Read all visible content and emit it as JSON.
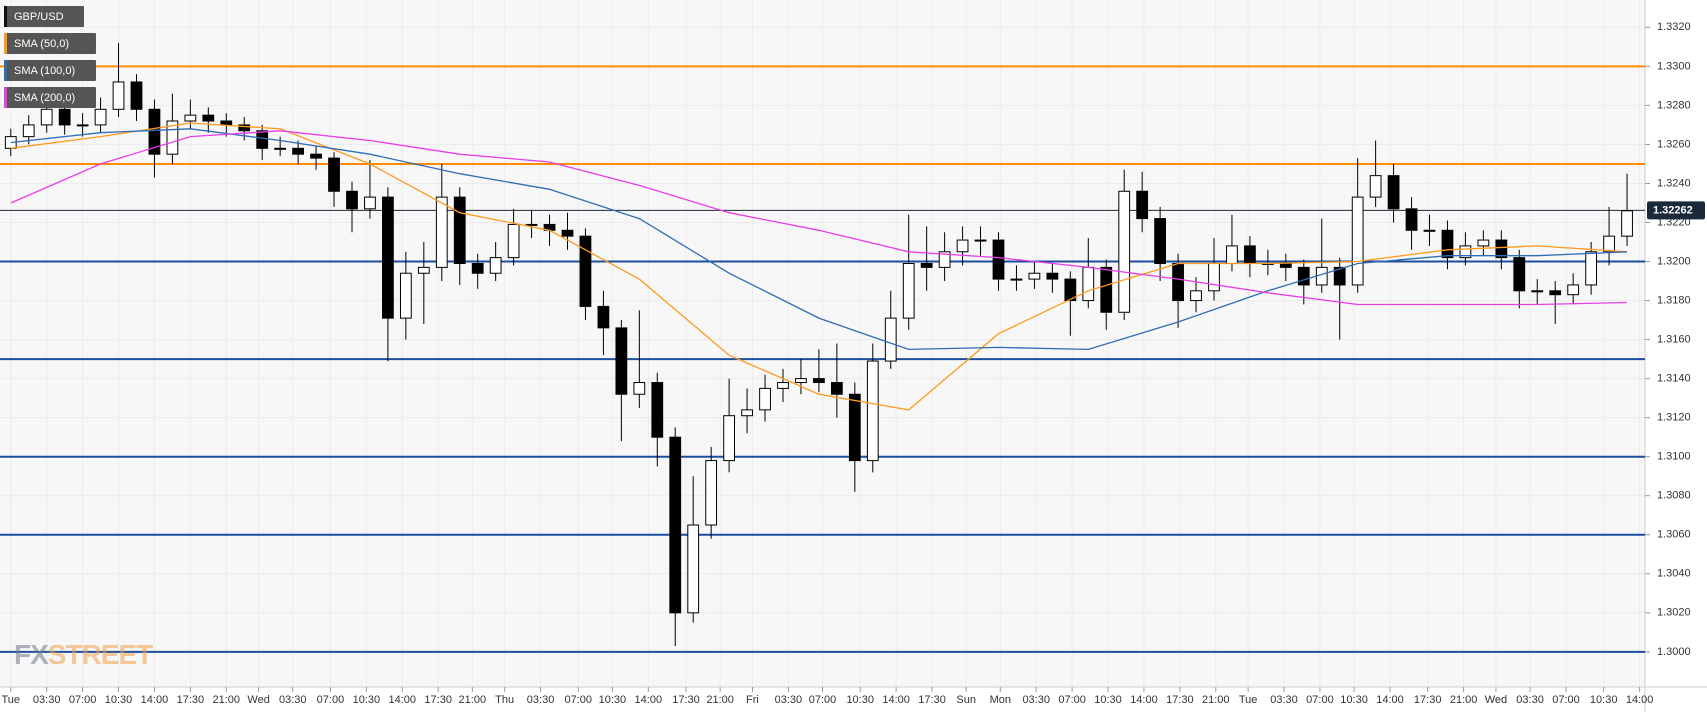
{
  "chart_data": {
    "type": "candlestick",
    "series": [
      {
        "name": "GBP/USD",
        "color": "#000000",
        "ohlc": [
          [
            1.3258,
            1.3268,
            1.3254,
            1.3264
          ],
          [
            1.3264,
            1.3275,
            1.326,
            1.327
          ],
          [
            1.327,
            1.3283,
            1.3266,
            1.3278
          ],
          [
            1.3278,
            1.3281,
            1.3265,
            1.327
          ],
          [
            1.327,
            1.3276,
            1.3264,
            1.327
          ],
          [
            1.327,
            1.3284,
            1.3266,
            1.3278
          ],
          [
            1.3278,
            1.3312,
            1.3274,
            1.3292
          ],
          [
            1.3292,
            1.3296,
            1.3272,
            1.3278
          ],
          [
            1.3278,
            1.3283,
            1.3243,
            1.3255
          ],
          [
            1.3255,
            1.3286,
            1.325,
            1.3272
          ],
          [
            1.3272,
            1.3283,
            1.3268,
            1.3275
          ],
          [
            1.3275,
            1.3279,
            1.3266,
            1.3272
          ],
          [
            1.3272,
            1.3276,
            1.3264,
            1.327
          ],
          [
            1.327,
            1.3274,
            1.3262,
            1.3267
          ],
          [
            1.3267,
            1.327,
            1.3252,
            1.3258
          ],
          [
            1.3258,
            1.3264,
            1.3254,
            1.3258
          ],
          [
            1.3258,
            1.3262,
            1.325,
            1.3255
          ],
          [
            1.3255,
            1.3259,
            1.3247,
            1.3253
          ],
          [
            1.3253,
            1.3256,
            1.3228,
            1.3236
          ],
          [
            1.3236,
            1.3241,
            1.3215,
            1.3227
          ],
          [
            1.3227,
            1.3252,
            1.3222,
            1.3233
          ],
          [
            1.3233,
            1.3238,
            1.3149,
            1.3171
          ],
          [
            1.3171,
            1.3205,
            1.316,
            1.3194
          ],
          [
            1.3194,
            1.321,
            1.3168,
            1.3197
          ],
          [
            1.3197,
            1.325,
            1.319,
            1.3233
          ],
          [
            1.3233,
            1.3238,
            1.3188,
            1.3199
          ],
          [
            1.3199,
            1.3204,
            1.3186,
            1.3194
          ],
          [
            1.3194,
            1.321,
            1.319,
            1.3202
          ],
          [
            1.3202,
            1.3227,
            1.3198,
            1.3219
          ],
          [
            1.3219,
            1.3226,
            1.3212,
            1.3219
          ],
          [
            1.3219,
            1.3224,
            1.3208,
            1.3216
          ],
          [
            1.3216,
            1.3225,
            1.3206,
            1.3213
          ],
          [
            1.3213,
            1.3217,
            1.317,
            1.3177
          ],
          [
            1.3177,
            1.3185,
            1.3152,
            1.3166
          ],
          [
            1.3166,
            1.317,
            1.3108,
            1.3132
          ],
          [
            1.3132,
            1.3175,
            1.3125,
            1.3138
          ],
          [
            1.3138,
            1.3143,
            1.3095,
            1.311
          ],
          [
            1.311,
            1.3115,
            1.3003,
            1.302
          ],
          [
            1.302,
            1.309,
            1.3015,
            1.3065
          ],
          [
            1.3065,
            1.3105,
            1.3058,
            1.3098
          ],
          [
            1.3098,
            1.314,
            1.3092,
            1.3121
          ],
          [
            1.3121,
            1.3135,
            1.3112,
            1.3124
          ],
          [
            1.3124,
            1.3142,
            1.3118,
            1.3135
          ],
          [
            1.3135,
            1.3145,
            1.3128,
            1.3138
          ],
          [
            1.3138,
            1.315,
            1.3132,
            1.314
          ],
          [
            1.314,
            1.3155,
            1.3133,
            1.3138
          ],
          [
            1.3138,
            1.3158,
            1.312,
            1.3132
          ],
          [
            1.3132,
            1.3138,
            1.3082,
            1.3098
          ],
          [
            1.3098,
            1.3158,
            1.3092,
            1.3149
          ],
          [
            1.3149,
            1.3185,
            1.3145,
            1.3171
          ],
          [
            1.3171,
            1.3224,
            1.3165,
            1.3199
          ],
          [
            1.3199,
            1.3218,
            1.3185,
            1.3197
          ],
          [
            1.3197,
            1.3215,
            1.319,
            1.3205
          ],
          [
            1.3205,
            1.3218,
            1.3198,
            1.3211
          ],
          [
            1.3211,
            1.3218,
            1.3203,
            1.3211
          ],
          [
            1.3211,
            1.3215,
            1.3185,
            1.3191
          ],
          [
            1.3191,
            1.3198,
            1.3185,
            1.3191
          ],
          [
            1.3191,
            1.32,
            1.3186,
            1.3194
          ],
          [
            1.3194,
            1.3199,
            1.3184,
            1.3191
          ],
          [
            1.3191,
            1.3195,
            1.3162,
            1.318
          ],
          [
            1.318,
            1.3212,
            1.3176,
            1.3197
          ],
          [
            1.3197,
            1.3201,
            1.3165,
            1.3174
          ],
          [
            1.3174,
            1.3247,
            1.317,
            1.3236
          ],
          [
            1.3236,
            1.3246,
            1.3215,
            1.3222
          ],
          [
            1.3222,
            1.3228,
            1.319,
            1.3199
          ],
          [
            1.3199,
            1.3204,
            1.3166,
            1.318
          ],
          [
            1.318,
            1.3192,
            1.3174,
            1.3185
          ],
          [
            1.3185,
            1.3212,
            1.318,
            1.3199
          ],
          [
            1.3199,
            1.3224,
            1.3195,
            1.3208
          ],
          [
            1.3208,
            1.3213,
            1.3192,
            1.3199
          ],
          [
            1.3199,
            1.3206,
            1.3193,
            1.3199
          ],
          [
            1.3199,
            1.3204,
            1.319,
            1.3197
          ],
          [
            1.3197,
            1.3201,
            1.3178,
            1.3188
          ],
          [
            1.3188,
            1.3222,
            1.3184,
            1.3197
          ],
          [
            1.3197,
            1.3202,
            1.316,
            1.3188
          ],
          [
            1.3188,
            1.3253,
            1.3184,
            1.3233
          ],
          [
            1.3233,
            1.3262,
            1.3228,
            1.3244
          ],
          [
            1.3244,
            1.325,
            1.322,
            1.3227
          ],
          [
            1.3227,
            1.3233,
            1.3206,
            1.3216
          ],
          [
            1.3216,
            1.3224,
            1.3208,
            1.3216
          ],
          [
            1.3216,
            1.3221,
            1.3196,
            1.3202
          ],
          [
            1.3202,
            1.3215,
            1.3198,
            1.3208
          ],
          [
            1.3208,
            1.3216,
            1.3203,
            1.3211
          ],
          [
            1.3211,
            1.3216,
            1.3196,
            1.3202
          ],
          [
            1.3202,
            1.3206,
            1.3176,
            1.3185
          ],
          [
            1.3185,
            1.3191,
            1.3178,
            1.3185
          ],
          [
            1.3185,
            1.319,
            1.3168,
            1.3183
          ],
          [
            1.3183,
            1.3194,
            1.3178,
            1.3188
          ],
          [
            1.3188,
            1.321,
            1.3183,
            1.3205
          ],
          [
            1.3205,
            1.3228,
            1.3198,
            1.3213
          ],
          [
            1.3213,
            1.3245,
            1.3208,
            1.3226
          ]
        ]
      },
      {
        "name": "SMA (50,0)",
        "color": "#ff9a1f",
        "x": [
          0,
          5,
          10,
          15,
          20,
          25,
          30,
          35,
          40,
          45,
          50,
          55,
          60,
          65,
          70,
          75,
          80,
          85,
          90
        ],
        "values": [
          1.3258,
          1.3264,
          1.3271,
          1.3268,
          1.325,
          1.3225,
          1.3216,
          1.3191,
          1.3152,
          1.3132,
          1.3124,
          1.3163,
          1.3185,
          1.3199,
          1.3199,
          1.32,
          1.3206,
          1.3208,
          1.3205
        ]
      },
      {
        "name": "SMA (100,0)",
        "color": "#2f6db5",
        "x": [
          0,
          5,
          10,
          15,
          20,
          25,
          30,
          35,
          40,
          45,
          50,
          55,
          60,
          65,
          70,
          75,
          80,
          85,
          90
        ],
        "values": [
          1.3261,
          1.3266,
          1.3268,
          1.3262,
          1.3255,
          1.3245,
          1.3237,
          1.3222,
          1.3194,
          1.3171,
          1.3155,
          1.3156,
          1.3155,
          1.3169,
          1.3185,
          1.3199,
          1.3203,
          1.3203,
          1.3205
        ]
      },
      {
        "name": "SMA (200,0)",
        "color": "#e83ee8",
        "x": [
          0,
          5,
          10,
          15,
          20,
          25,
          30,
          35,
          40,
          45,
          50,
          55,
          60,
          65,
          70,
          75,
          80,
          85,
          90
        ],
        "values": [
          1.323,
          1.325,
          1.3264,
          1.3267,
          1.3262,
          1.3255,
          1.3251,
          1.3239,
          1.3225,
          1.3216,
          1.3205,
          1.3202,
          1.3197,
          1.3191,
          1.3184,
          1.3178,
          1.3178,
          1.3178,
          1.3179
        ]
      }
    ],
    "levels": [
      {
        "value": 1.33,
        "color": "#ff8c00"
      },
      {
        "value": 1.325,
        "color": "#ff8c00"
      },
      {
        "value": 1.32,
        "color": "#1c4d9e"
      },
      {
        "value": 1.315,
        "color": "#1c4d9e"
      },
      {
        "value": 1.31,
        "color": "#1c4d9e"
      },
      {
        "value": 1.306,
        "color": "#1c4d9e"
      },
      {
        "value": 1.3,
        "color": "#1c4d9e"
      }
    ],
    "last_price": {
      "value": 1.32262,
      "label": "1.32262"
    },
    "watermark": {
      "prefix": "FX",
      "suffix": "STREET"
    },
    "xlim": [
      -0.6,
      91
    ],
    "ylim": [
      1.2982,
      1.3334
    ],
    "yticks": [
      {
        "value": 1.3,
        "label": "1.3000"
      },
      {
        "value": 1.302,
        "label": "1.3020"
      },
      {
        "value": 1.304,
        "label": "1.3040"
      },
      {
        "value": 1.306,
        "label": "1.3060"
      },
      {
        "value": 1.308,
        "label": "1.3080"
      },
      {
        "value": 1.31,
        "label": "1.3100"
      },
      {
        "value": 1.312,
        "label": "1.3120"
      },
      {
        "value": 1.314,
        "label": "1.3140"
      },
      {
        "value": 1.316,
        "label": "1.3160"
      },
      {
        "value": 1.318,
        "label": "1.3180"
      },
      {
        "value": 1.32,
        "label": "1.3200"
      },
      {
        "value": 1.322,
        "label": "1.3220"
      },
      {
        "value": 1.324,
        "label": "1.3240"
      },
      {
        "value": 1.326,
        "label": "1.3260"
      },
      {
        "value": 1.328,
        "label": "1.3280"
      },
      {
        "value": 1.33,
        "label": "1.3300"
      },
      {
        "value": 1.332,
        "label": "1.3320"
      }
    ],
    "xticks": [
      {
        "value": 0,
        "label": "Tue"
      },
      {
        "value": 2.0,
        "label": "03:30"
      },
      {
        "value": 4.0,
        "label": "07:00"
      },
      {
        "value": 6.0,
        "label": "10:30"
      },
      {
        "value": 8.0,
        "label": "14:00"
      },
      {
        "value": 10.0,
        "label": "17:30"
      },
      {
        "value": 12.0,
        "label": "21:00"
      },
      {
        "value": 13.8,
        "label": "Wed"
      },
      {
        "value": 15.7,
        "label": "03:30"
      },
      {
        "value": 17.8,
        "label": "07:00"
      },
      {
        "value": 19.8,
        "label": "10:30"
      },
      {
        "value": 21.8,
        "label": "14:00"
      },
      {
        "value": 23.8,
        "label": "17:30"
      },
      {
        "value": 25.7,
        "label": "21:00"
      },
      {
        "value": 27.5,
        "label": "Thu"
      },
      {
        "value": 29.5,
        "label": "03:30"
      },
      {
        "value": 31.6,
        "label": "07:00"
      },
      {
        "value": 33.5,
        "label": "10:30"
      },
      {
        "value": 35.5,
        "label": "14:00"
      },
      {
        "value": 37.6,
        "label": "17:30"
      },
      {
        "value": 39.5,
        "label": "21:00"
      },
      {
        "value": 41.3,
        "label": "Fri"
      },
      {
        "value": 43.3,
        "label": "03:30"
      },
      {
        "value": 45.2,
        "label": "07:00"
      },
      {
        "value": 47.3,
        "label": "10:30"
      },
      {
        "value": 49.3,
        "label": "14:00"
      },
      {
        "value": 51.3,
        "label": "17:30"
      },
      {
        "value": 53.2,
        "label": "Sun"
      },
      {
        "value": 55.1,
        "label": "Mon"
      },
      {
        "value": 57.1,
        "label": "03:30"
      },
      {
        "value": 59.1,
        "label": "07:00"
      },
      {
        "value": 61.1,
        "label": "10:30"
      },
      {
        "value": 63.1,
        "label": "14:00"
      },
      {
        "value": 65.1,
        "label": "17:30"
      },
      {
        "value": 67.1,
        "label": "21:00"
      },
      {
        "value": 68.9,
        "label": "Tue"
      },
      {
        "value": 70.9,
        "label": "03:30"
      },
      {
        "value": 72.9,
        "label": "07:00"
      },
      {
        "value": 74.8,
        "label": "10:30"
      },
      {
        "value": 76.8,
        "label": "14:00"
      },
      {
        "value": 78.9,
        "label": "17:30"
      },
      {
        "value": 80.9,
        "label": "21:00"
      },
      {
        "value": 82.7,
        "label": "Wed"
      },
      {
        "value": 84.6,
        "label": "03:30"
      },
      {
        "value": 86.6,
        "label": "07:00"
      },
      {
        "value": 88.7,
        "label": "10:30"
      },
      {
        "value": 90.7,
        "label": "14:00"
      }
    ],
    "grid": true
  }
}
